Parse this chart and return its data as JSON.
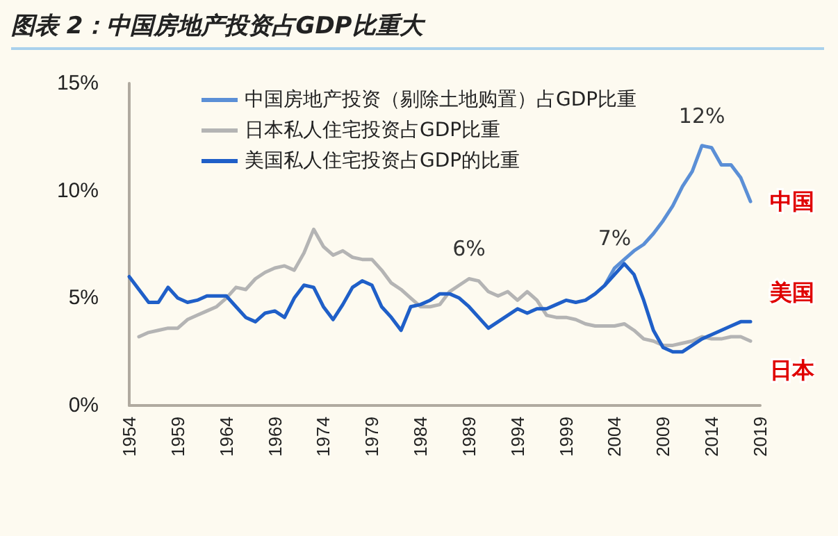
{
  "chart_data": {
    "type": "line",
    "title": "图表 2：中国房地产投资占GDP比重大",
    "x": [
      1954,
      1955,
      1956,
      1957,
      1958,
      1959,
      1960,
      1961,
      1962,
      1963,
      1964,
      1965,
      1966,
      1967,
      1968,
      1969,
      1970,
      1971,
      1972,
      1973,
      1974,
      1975,
      1976,
      1977,
      1978,
      1979,
      1980,
      1981,
      1982,
      1983,
      1984,
      1985,
      1986,
      1987,
      1988,
      1989,
      1990,
      1991,
      1992,
      1993,
      1994,
      1995,
      1996,
      1997,
      1998,
      1999,
      2000,
      2001,
      2002,
      2003,
      2004,
      2005,
      2006,
      2007,
      2008,
      2009,
      2010,
      2011,
      2012,
      2013,
      2014,
      2015,
      2016,
      2017,
      2018
    ],
    "series": [
      {
        "name": "中国房地产投资（剔除土地购置）占GDP比重",
        "color": "#5b8fd6",
        "values": [
          null,
          null,
          null,
          null,
          null,
          null,
          null,
          null,
          null,
          null,
          null,
          null,
          null,
          null,
          null,
          null,
          null,
          null,
          null,
          null,
          null,
          null,
          null,
          null,
          null,
          null,
          null,
          null,
          null,
          null,
          null,
          null,
          null,
          null,
          null,
          null,
          null,
          null,
          null,
          null,
          null,
          null,
          null,
          null,
          null,
          null,
          null,
          null,
          null,
          5.6,
          6.4,
          6.8,
          7.2,
          7.5,
          8.0,
          8.6,
          9.3,
          10.2,
          10.9,
          12.1,
          12.0,
          11.2,
          11.2,
          10.6,
          9.5
        ]
      },
      {
        "name": "日本私人住宅投资占GDP比重",
        "color": "#b4b4b4",
        "values": [
          null,
          3.2,
          3.4,
          3.5,
          3.6,
          3.6,
          4.0,
          4.2,
          4.4,
          4.6,
          5.0,
          5.5,
          5.4,
          5.9,
          6.2,
          6.4,
          6.5,
          6.3,
          7.1,
          8.2,
          7.4,
          7.0,
          7.2,
          6.9,
          6.8,
          6.8,
          6.3,
          5.7,
          5.4,
          5.0,
          4.6,
          4.6,
          4.7,
          5.3,
          5.6,
          5.9,
          5.8,
          5.3,
          5.1,
          5.3,
          4.9,
          5.3,
          4.9,
          4.2,
          4.1,
          4.1,
          4.0,
          3.8,
          3.7,
          3.7,
          3.7,
          3.8,
          3.5,
          3.1,
          3.0,
          2.8,
          2.8,
          2.9,
          3.0,
          3.2,
          3.1,
          3.1,
          3.2,
          3.2,
          3.0
        ]
      },
      {
        "name": "美国私人住宅投资占GDP的比重",
        "color": "#1f5fc8",
        "values": [
          6.0,
          5.4,
          4.8,
          4.8,
          5.5,
          5.0,
          4.8,
          4.9,
          5.1,
          5.1,
          5.1,
          4.6,
          4.1,
          3.9,
          4.3,
          4.4,
          4.1,
          5.0,
          5.6,
          5.5,
          4.6,
          4.0,
          4.7,
          5.5,
          5.8,
          5.6,
          4.6,
          4.1,
          3.5,
          4.6,
          4.7,
          4.9,
          5.2,
          5.2,
          5.0,
          4.6,
          4.1,
          3.6,
          3.9,
          4.2,
          4.5,
          4.3,
          4.5,
          4.5,
          4.7,
          4.9,
          4.8,
          4.9,
          5.2,
          5.6,
          6.1,
          6.6,
          6.1,
          4.9,
          3.5,
          2.7,
          2.5,
          2.5,
          2.8,
          3.1,
          3.3,
          3.5,
          3.7,
          3.9,
          3.9
        ]
      }
    ],
    "xlim": [
      1954,
      2019
    ],
    "xticks": [
      1954,
      1959,
      1964,
      1969,
      1974,
      1979,
      1984,
      1989,
      1994,
      1999,
      2004,
      2009,
      2014,
      2019
    ],
    "ylim": [
      0,
      15
    ],
    "yticks": [
      {
        "value": 0,
        "label": "0%"
      },
      {
        "value": 5,
        "label": "5%"
      },
      {
        "value": 10,
        "label": "10%"
      },
      {
        "value": 15,
        "label": "15%"
      }
    ],
    "annotations": [
      {
        "text": "6%",
        "x": 1989,
        "y": 5.9
      },
      {
        "text": "7%",
        "x": 2004,
        "y": 6.4
      },
      {
        "text": "12%",
        "x": 2013,
        "y": 12.1
      },
      {
        "text": "中国",
        "x": 2018,
        "y": 9.5
      },
      {
        "text": "美国",
        "x": 2018,
        "y": 3.9
      },
      {
        "text": "日本",
        "x": 2018,
        "y": 3.0
      }
    ],
    "grid": false,
    "legend": "top left",
    "marker": "none",
    "line_style": "solid"
  }
}
